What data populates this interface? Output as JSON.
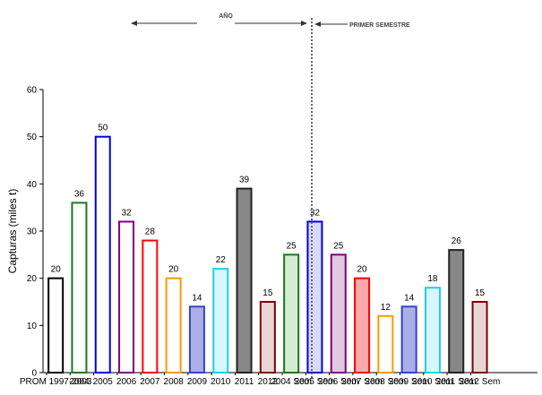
{
  "chart_data": {
    "type": "bar",
    "title": "",
    "xlabel": "",
    "ylabel": "Capturas (miles t)",
    "ylim": [
      0,
      60
    ],
    "yticks": [
      0,
      10,
      20,
      30,
      40,
      50,
      60
    ],
    "grid": false,
    "legend": "none",
    "section_labels": {
      "annual": "AÑO",
      "first_semester": "PRIMER SEMESTRE"
    },
    "categories": [
      "PROM 1997-2003",
      "2004",
      "2005",
      "2006",
      "2007",
      "2008",
      "2009",
      "2010",
      "2011",
      "2012",
      "2004 Sem",
      "2005 Sem",
      "2006 Sem",
      "2007 Sem",
      "2008 Sem",
      "2009 Sem",
      "2010 Sem",
      "2011 Sem",
      "2012 Sem"
    ],
    "values": [
      20,
      36,
      50,
      32,
      28,
      20,
      14,
      22,
      39,
      15,
      25,
      32,
      25,
      20,
      12,
      14,
      18,
      26,
      15
    ],
    "colors": {
      "edges": [
        "#000000",
        "#1a7a1a",
        "#0000dd",
        "#800080",
        "#ff0000",
        "#ff9900",
        "#3344cc",
        "#22ccee",
        "#222222",
        "#800000",
        "#1a7a1a",
        "#0000dd",
        "#800080",
        "#ff0000",
        "#ff9900",
        "#3344cc",
        "#22ccee",
        "#222222",
        "#800000"
      ],
      "fills": [
        "#ffffff",
        "#ffffff",
        "#ffffff",
        "#ffffff",
        "#ffffff",
        "#ffffff",
        "#aab0e6",
        "#d8f6fb",
        "#888888",
        "#e8d6d6",
        "#d4ecd4",
        "#d8dbf8",
        "#e0c8e0",
        "#ffaaaa",
        "#ffffff",
        "#aab0e6",
        "#d8f6fb",
        "#888888",
        "#e8d6d6"
      ]
    }
  }
}
